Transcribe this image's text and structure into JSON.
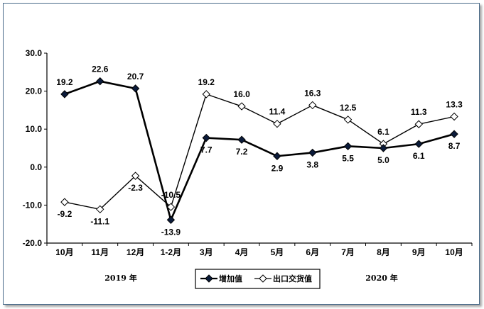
{
  "chart_data": {
    "type": "line",
    "categories": [
      "10月",
      "11月",
      "12月",
      "1-2月",
      "3月",
      "4月",
      "5月",
      "6月",
      "7月",
      "8月",
      "9月",
      "10月"
    ],
    "ylim": [
      -20.0,
      30.0
    ],
    "yticks": [
      "30.0",
      "20.0",
      "10.0",
      "0.0",
      "-10.0",
      "-20.0"
    ],
    "ytick_values": [
      30,
      20,
      10,
      0,
      -10,
      -20
    ],
    "series": [
      {
        "name": "增加值",
        "marker": "filled-diamond",
        "values": [
          19.2,
          22.6,
          20.7,
          -13.9,
          7.7,
          7.2,
          2.9,
          3.8,
          5.5,
          5.0,
          6.1,
          8.7
        ],
        "labels": [
          "19.2",
          "22.6",
          "20.7",
          "-13.9",
          "7.7",
          "7.2",
          "2.9",
          "3.8",
          "5.5",
          "5.0",
          "6.1",
          "8.7"
        ]
      },
      {
        "name": "出口交货值",
        "marker": "open-diamond",
        "values": [
          -9.2,
          -11.1,
          -2.3,
          -10.5,
          19.2,
          16.0,
          11.4,
          16.3,
          12.5,
          6.1,
          11.3,
          13.3
        ],
        "labels": [
          "-9.2",
          "-11.1",
          "-2.3",
          "-10.5",
          "19.2",
          "16.0",
          "11.4",
          "16.3",
          "12.5",
          "6.1",
          "11.3",
          "13.3"
        ]
      }
    ],
    "groups": [
      "2019 年",
      "2020 年"
    ],
    "legend_position": "bottom-center",
    "grid": false,
    "colors": {
      "line": "#000000",
      "frame": "#4a6b8a"
    }
  }
}
